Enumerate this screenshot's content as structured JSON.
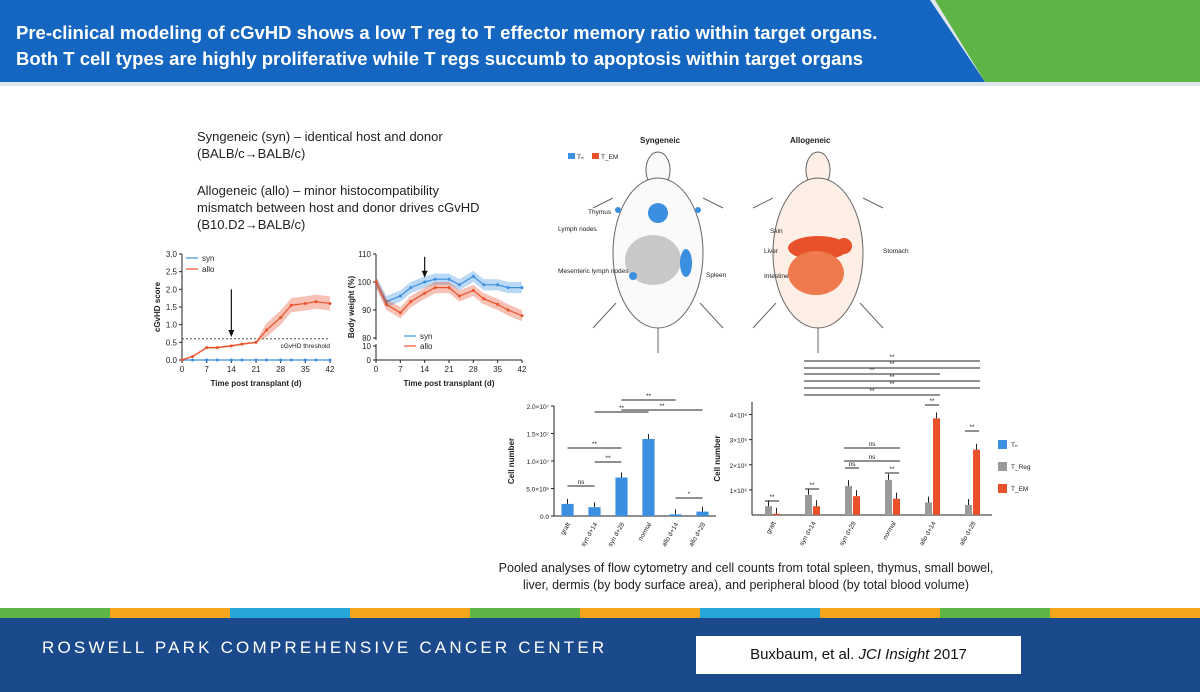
{
  "title": {
    "line1": "Pre-clinical modeling of cGvHD shows a low T reg to T effector memory ratio within target organs.",
    "line2": "Both T cell types are highly proliferative while T regs succumb to apoptosis within target organs"
  },
  "notes": {
    "syn_line1": "Syngeneic (syn) – identical host and donor",
    "syn_line2": "(BALB/c→BALB/c)",
    "allo_line1": "Allogeneic (allo) – minor histocompatibility",
    "allo_line2": "mismatch between host and donor drives cGvHD",
    "allo_line3": "(B10.D2→BALB/c)"
  },
  "colors": {
    "syn": "#3b8fe0",
    "allo": "#e8512a",
    "gray": "#9a9a9a",
    "title_blue": "#1566c0",
    "green": "#5fb446",
    "footer": "#1b4a8c"
  },
  "chart_data": [
    {
      "type": "line",
      "ylabel": "cGvHD score",
      "xlabel": "Time post transplant (d)",
      "x_ticks": [
        "0",
        "7",
        "14",
        "21",
        "28",
        "35",
        "42"
      ],
      "y_ticks": [
        "0.0",
        "0.5",
        "1.0",
        "1.5",
        "2.0",
        "2.5",
        "3.0"
      ],
      "ylim": [
        0,
        3.0
      ],
      "threshold_label": "cGvHD threshold",
      "threshold": 0.6,
      "series": [
        {
          "name": "syn",
          "x": [
            0,
            3,
            7,
            10,
            14,
            17,
            21,
            24,
            28,
            31,
            35,
            38,
            42
          ],
          "values": [
            0,
            0,
            0,
            0,
            0,
            0,
            0,
            0,
            0,
            0,
            0,
            0,
            0
          ]
        },
        {
          "name": "allo",
          "x": [
            0,
            3,
            7,
            10,
            14,
            17,
            21,
            24,
            28,
            31,
            35,
            38,
            42
          ],
          "values": [
            0,
            0.1,
            0.35,
            0.35,
            0.4,
            0.45,
            0.5,
            0.85,
            1.2,
            1.55,
            1.6,
            1.65,
            1.6
          ]
        }
      ]
    },
    {
      "type": "line",
      "ylabel": "Body weight (%)",
      "xlabel": "Time post transplant (d)",
      "x_ticks": [
        "0",
        "7",
        "14",
        "21",
        "28",
        "35",
        "42"
      ],
      "y_ticks": [
        "0",
        "10",
        "80",
        "90",
        "100",
        "110"
      ],
      "series": [
        {
          "name": "syn",
          "x": [
            0,
            3,
            7,
            10,
            14,
            17,
            21,
            24,
            28,
            31,
            35,
            38,
            42
          ],
          "values": [
            100,
            93,
            95,
            98,
            100,
            101,
            101,
            99,
            102,
            99,
            99,
            98,
            98
          ]
        },
        {
          "name": "allo",
          "x": [
            0,
            3,
            7,
            10,
            14,
            17,
            21,
            24,
            28,
            31,
            35,
            38,
            42
          ],
          "values": [
            100,
            92,
            89,
            93,
            96,
            98,
            98,
            95,
            97,
            94,
            92,
            90,
            88
          ]
        }
      ]
    },
    {
      "type": "bar",
      "ylabel": "Cell number",
      "y_ticks": [
        "0.0",
        "5.0×10⁶",
        "1.0×10⁷",
        "1.5×10⁷",
        "2.0×10⁷"
      ],
      "ylim": [
        0,
        20000000
      ],
      "categories": [
        "graft",
        "syn d+14",
        "syn d+28",
        "normal",
        "allo d+14",
        "allo d+28"
      ],
      "values": [
        2200000,
        1600000,
        7000000,
        14000000,
        300000,
        800000
      ],
      "sig_labels": [
        "ns",
        "**",
        "**",
        "**",
        "**",
        "**",
        "*"
      ]
    },
    {
      "type": "bar",
      "ylabel": "Cell number",
      "y_ticks": [
        "1×10⁶",
        "2×10⁶",
        "3×10⁶",
        "4×10⁶"
      ],
      "ylim": [
        0,
        4500000
      ],
      "categories": [
        "graft",
        "syn d+14",
        "syn d+28",
        "normal",
        "allo d+14",
        "allo d+28"
      ],
      "legend": [
        "Tₙ",
        "T_Reg",
        "T_EM"
      ],
      "series": [
        {
          "name": "T_Reg",
          "values": [
            350000,
            800000,
            1150000,
            1400000,
            500000,
            400000
          ]
        },
        {
          "name": "T_EM",
          "values": [
            50000,
            350000,
            750000,
            650000,
            3850000,
            2600000
          ]
        }
      ],
      "sig_labels": [
        "**",
        "**",
        "ns",
        "ns",
        "ns",
        "**",
        "**",
        "**",
        "**",
        "**",
        "**",
        "**",
        "**",
        "**"
      ]
    }
  ],
  "diagram": {
    "left_title": "Syngeneic",
    "right_title": "Allogeneic",
    "legend_tn": "Tₙ",
    "legend_tem": "T_EM",
    "left_labels": [
      "Thymus",
      "Lymph nodes",
      "Mesenteric lymph nodes",
      "Spleen"
    ],
    "right_labels": [
      "Skin",
      "Liver",
      "Intestine",
      "Stomach"
    ]
  },
  "caption": "Pooled analyses of flow cytometry and cell counts from total spleen, thymus, small bowel, liver, dermis (by body surface area), and peripheral blood (by total blood volume)",
  "footer": {
    "institution": "ROSWELL PARK COMPREHENSIVE CANCER CENTER",
    "citation_authors": "Buxbaum, et al.",
    "citation_journal": "JCI Insight",
    "citation_year": "2017"
  }
}
